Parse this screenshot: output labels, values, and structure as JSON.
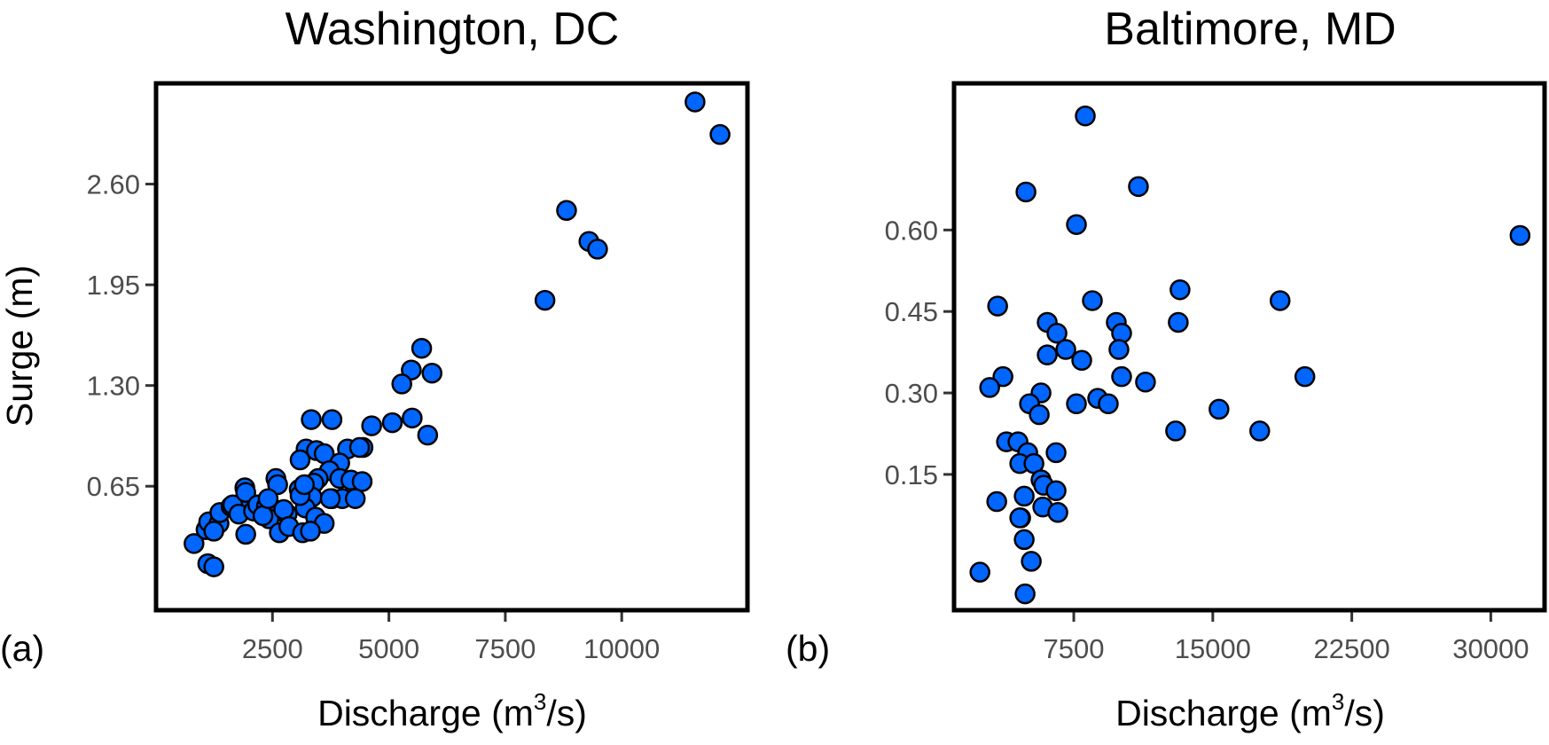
{
  "chart_data": [
    {
      "type": "scatter",
      "panel_label": "(a)",
      "title": "Washington, DC",
      "xlabel": "Discharge (m",
      "xlabel_sup": "3",
      "xlabel_tail": "/s)",
      "ylabel": "Surge (m)",
      "xlim": [
        0,
        12700
      ],
      "ylim": [
        -0.15,
        3.25
      ],
      "xticks": [
        2500,
        5000,
        7500,
        10000
      ],
      "xtick_labels": [
        "2500",
        "5000",
        "7500",
        "10000"
      ],
      "yticks": [
        0.65,
        1.3,
        1.95,
        2.6
      ],
      "ytick_labels": [
        "0.65",
        "1.30",
        "1.95",
        "2.60"
      ],
      "grid": false,
      "marker_color": "#0066ff",
      "points": [
        [
          11574,
          3.13
        ],
        [
          12111,
          2.92
        ],
        [
          8815,
          2.43
        ],
        [
          9296,
          2.23
        ],
        [
          9481,
          2.18
        ],
        [
          8352,
          1.85
        ],
        [
          5704,
          1.54
        ],
        [
          5481,
          1.4
        ],
        [
          5926,
          1.38
        ],
        [
          5278,
          1.31
        ],
        [
          5500,
          1.09
        ],
        [
          5074,
          1.06
        ],
        [
          4630,
          1.04
        ],
        [
          5833,
          0.98
        ],
        [
          4444,
          0.9
        ],
        [
          3333,
          1.08
        ],
        [
          3778,
          1.08
        ],
        [
          4111,
          0.89
        ],
        [
          4370,
          0.9
        ],
        [
          3222,
          0.89
        ],
        [
          3444,
          0.88
        ],
        [
          3611,
          0.86
        ],
        [
          3093,
          0.82
        ],
        [
          3944,
          0.8
        ],
        [
          3722,
          0.75
        ],
        [
          3481,
          0.7
        ],
        [
          3944,
          0.7
        ],
        [
          2574,
          0.7
        ],
        [
          2611,
          0.66
        ],
        [
          3389,
          0.67
        ],
        [
          4185,
          0.69
        ],
        [
          4426,
          0.68
        ],
        [
          3074,
          0.63
        ],
        [
          1907,
          0.64
        ],
        [
          3352,
          0.58
        ],
        [
          3778,
          0.57
        ],
        [
          4000,
          0.57
        ],
        [
          4278,
          0.57
        ],
        [
          1963,
          0.54
        ],
        [
          2204,
          0.5
        ],
        [
          2667,
          0.49
        ],
        [
          3204,
          0.51
        ],
        [
          2815,
          0.47
        ],
        [
          3426,
          0.45
        ],
        [
          815,
          0.28
        ],
        [
          1111,
          0.15
        ],
        [
          1241,
          0.13
        ],
        [
          1074,
          0.37
        ],
        [
          1130,
          0.42
        ],
        [
          1352,
          0.41
        ],
        [
          1370,
          0.48
        ],
        [
          1611,
          0.52
        ],
        [
          1648,
          0.53
        ],
        [
          1926,
          0.61
        ],
        [
          1778,
          0.47
        ],
        [
          2093,
          0.49
        ],
        [
          2185,
          0.53
        ],
        [
          2370,
          0.52
        ],
        [
          2537,
          0.5
        ],
        [
          2426,
          0.44
        ],
        [
          2648,
          0.35
        ],
        [
          1926,
          0.34
        ],
        [
          2296,
          0.46
        ],
        [
          2407,
          0.57
        ],
        [
          2741,
          0.5
        ],
        [
          2852,
          0.39
        ],
        [
          3148,
          0.35
        ],
        [
          3093,
          0.59
        ],
        [
          3185,
          0.66
        ],
        [
          3741,
          0.57
        ],
        [
          3611,
          0.41
        ],
        [
          3315,
          0.36
        ],
        [
          1241,
          0.36
        ]
      ]
    },
    {
      "type": "scatter",
      "panel_label": "(b)",
      "title": "Baltimore, MD",
      "xlabel": "Discharge (m",
      "xlabel_sup": "3",
      "xlabel_tail": "/s)",
      "ylabel": "",
      "xlim": [
        1040,
        32900
      ],
      "ylim": [
        -0.1,
        0.87
      ],
      "xticks": [
        7500,
        15000,
        22500,
        30000
      ],
      "xtick_labels": [
        "7500",
        "15000",
        "22500",
        "30000"
      ],
      "yticks": [
        0.15,
        0.3,
        0.45,
        0.6
      ],
      "ytick_labels": [
        "0.15",
        "0.30",
        "0.45",
        "0.60"
      ],
      "grid": false,
      "marker_color": "#0066ff",
      "points": [
        [
          8121,
          0.81
        ],
        [
          4920,
          0.67
        ],
        [
          10987,
          0.68
        ],
        [
          7643,
          0.61
        ],
        [
          31576,
          0.59
        ],
        [
          8503,
          0.47
        ],
        [
          13232,
          0.49
        ],
        [
          3392,
          0.46
        ],
        [
          13137,
          0.43
        ],
        [
          18631,
          0.47
        ],
        [
          6067,
          0.43
        ],
        [
          6592,
          0.41
        ],
        [
          7070,
          0.38
        ],
        [
          6067,
          0.37
        ],
        [
          7930,
          0.36
        ],
        [
          9793,
          0.43
        ],
        [
          10080,
          0.41
        ],
        [
          9936,
          0.38
        ],
        [
          10080,
          0.33
        ],
        [
          11369,
          0.32
        ],
        [
          19968,
          0.33
        ],
        [
          3678,
          0.33
        ],
        [
          2962,
          0.31
        ],
        [
          5732,
          0.3
        ],
        [
          5111,
          0.28
        ],
        [
          5637,
          0.26
        ],
        [
          7643,
          0.28
        ],
        [
          8790,
          0.29
        ],
        [
          9363,
          0.28
        ],
        [
          15334,
          0.27
        ],
        [
          12994,
          0.23
        ],
        [
          17532,
          0.23
        ],
        [
          3869,
          0.21
        ],
        [
          4490,
          0.21
        ],
        [
          5016,
          0.19
        ],
        [
          6545,
          0.19
        ],
        [
          4586,
          0.17
        ],
        [
          5350,
          0.17
        ],
        [
          5732,
          0.14
        ],
        [
          5876,
          0.13
        ],
        [
          6545,
          0.12
        ],
        [
          3344,
          0.1
        ],
        [
          4825,
          0.11
        ],
        [
          5828,
          0.09
        ],
        [
          6640,
          0.08
        ],
        [
          4634,
          0.07
        ],
        [
          5207,
          -0.01
        ],
        [
          4825,
          0.03
        ],
        [
          4873,
          -0.07
        ],
        [
          2436,
          -0.03
        ],
        [
          4586,
          0.07
        ]
      ]
    }
  ]
}
